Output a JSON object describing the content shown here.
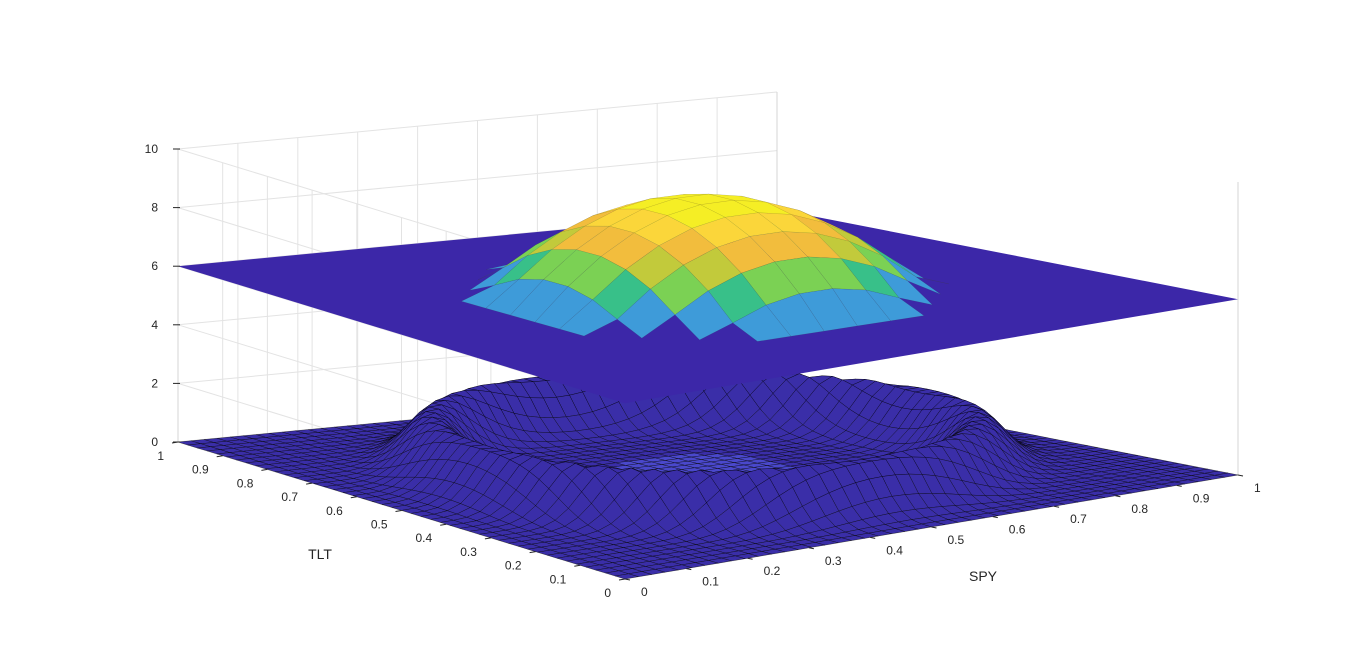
{
  "chart_data": {
    "type": "surface3d",
    "title": "",
    "xlabel": "SPY",
    "ylabel": "TLT",
    "zlabel": "",
    "xlim": [
      0,
      1
    ],
    "ylim": [
      0,
      1
    ],
    "zlim": [
      0,
      10
    ],
    "grid": true,
    "x_ticks": [
      "0",
      "0.1",
      "0.2",
      "0.3",
      "0.4",
      "0.5",
      "0.6",
      "0.7",
      "0.8",
      "0.9",
      "1"
    ],
    "y_ticks": [
      "0",
      "0.1",
      "0.2",
      "0.3",
      "0.4",
      "0.5",
      "0.6",
      "0.7",
      "0.8",
      "0.9",
      "1"
    ],
    "z_ticks": [
      "0",
      "2",
      "4",
      "6",
      "8",
      "10"
    ],
    "surfaces": [
      {
        "description": "mesh surface near z = 0 with a raised ring",
        "base_level": 0,
        "ring_center": [
          0.5,
          0.5
        ],
        "ring_radius": 0.36,
        "ring_height": 1.8,
        "face_color": "#3a2ea8",
        "center_color": "#4a48cc",
        "edge_color": "#000000"
      },
      {
        "description": "flat plane with central dome",
        "base_level": 6,
        "dome_center": [
          0.5,
          0.5
        ],
        "dome_radius": 0.3,
        "dome_peak": 9.3,
        "face_color": "#3c27a8",
        "dome_colormap": [
          "#3e9bd9",
          "#38c089",
          "#7bd154",
          "#c2ca3b",
          "#f2bd3d",
          "#fbd63a",
          "#f5ee25"
        ]
      }
    ]
  }
}
